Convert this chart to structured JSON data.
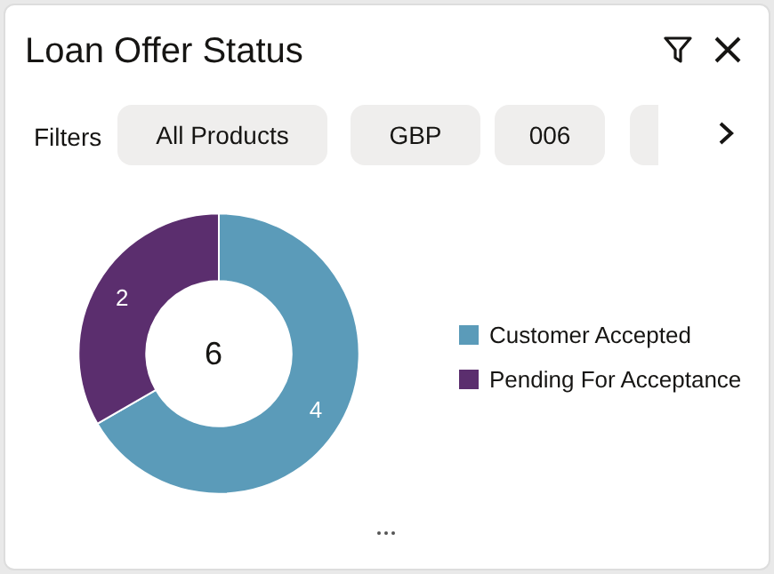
{
  "chart_data": {
    "type": "donut",
    "title": "Loan Offer Status",
    "categories": [
      "Customer Accepted",
      "Pending For Acceptance"
    ],
    "values": [
      4,
      2
    ],
    "colors": [
      "#5b9bb9",
      "#5b2e6e"
    ],
    "data_labels": true,
    "legend": "right",
    "annotations": [
      "Filters",
      "All Products",
      "GBP",
      "006",
      "6"
    ]
  }
}
